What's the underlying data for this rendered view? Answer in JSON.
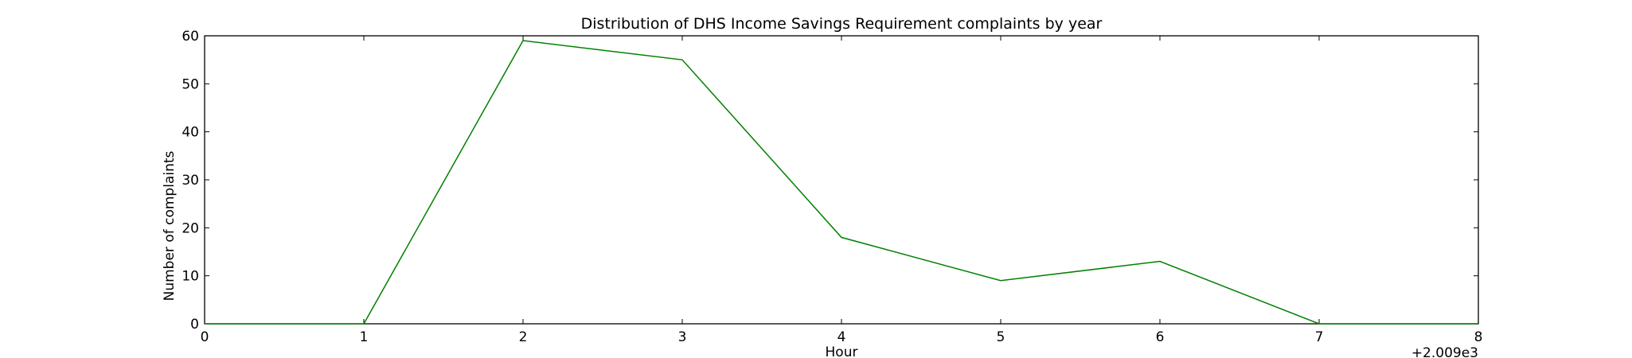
{
  "chart_data": {
    "type": "line",
    "title": "Distribution of  DHS Income Savings Requirement complaints by year",
    "xlabel": "Hour",
    "ylabel": "Number of complaints",
    "x_offset_label": "+2.009e3",
    "xlim": [
      0,
      8
    ],
    "ylim": [
      0,
      60
    ],
    "x_ticks": [
      0,
      1,
      2,
      3,
      4,
      5,
      6,
      7,
      8
    ],
    "y_ticks": [
      0,
      10,
      20,
      30,
      40,
      50,
      60
    ],
    "grid": false,
    "legend": "none",
    "series": [
      {
        "color": "#008000",
        "x": [
          0,
          1,
          2,
          3,
          4,
          5,
          6,
          7,
          8
        ],
        "y": [
          0,
          0,
          59,
          55,
          18,
          9,
          13,
          0,
          0
        ]
      }
    ]
  }
}
